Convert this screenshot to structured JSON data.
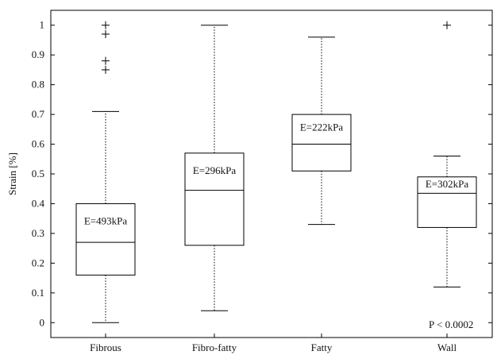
{
  "chart_data": {
    "type": "box",
    "ylabel": "Strain [%]",
    "ylim": [
      -0.05,
      1.05
    ],
    "yticks": [
      "0",
      "0.1",
      "0.2",
      "0.3",
      "0.4",
      "0.5",
      "0.6",
      "0.7",
      "0.8",
      "0.9",
      "1"
    ],
    "categories": [
      "Fibrous",
      "Fibro-fatty",
      "Fatty",
      "Wall"
    ],
    "boxes": [
      {
        "category": "Fibrous",
        "whisker_low": 0.0,
        "q1": 0.16,
        "median": 0.27,
        "q3": 0.4,
        "whisker_high": 0.71,
        "outliers": [
          0.85,
          0.88,
          0.97,
          1.0
        ],
        "label": "E=493kPa"
      },
      {
        "category": "Fibro-fatty",
        "whisker_low": 0.04,
        "q1": 0.26,
        "median": 0.445,
        "q3": 0.57,
        "whisker_high": 1.0,
        "outliers": [],
        "label": "E=296kPa"
      },
      {
        "category": "Fatty",
        "whisker_low": 0.33,
        "q1": 0.51,
        "median": 0.6,
        "q3": 0.7,
        "whisker_high": 0.96,
        "outliers": [],
        "label": "E=222kPa"
      },
      {
        "category": "Wall",
        "whisker_low": 0.12,
        "q1": 0.32,
        "median": 0.435,
        "q3": 0.49,
        "whisker_high": 0.56,
        "outliers": [
          1.0
        ],
        "label": "E=302kPa"
      }
    ],
    "annotation": "P < 0.0002"
  }
}
